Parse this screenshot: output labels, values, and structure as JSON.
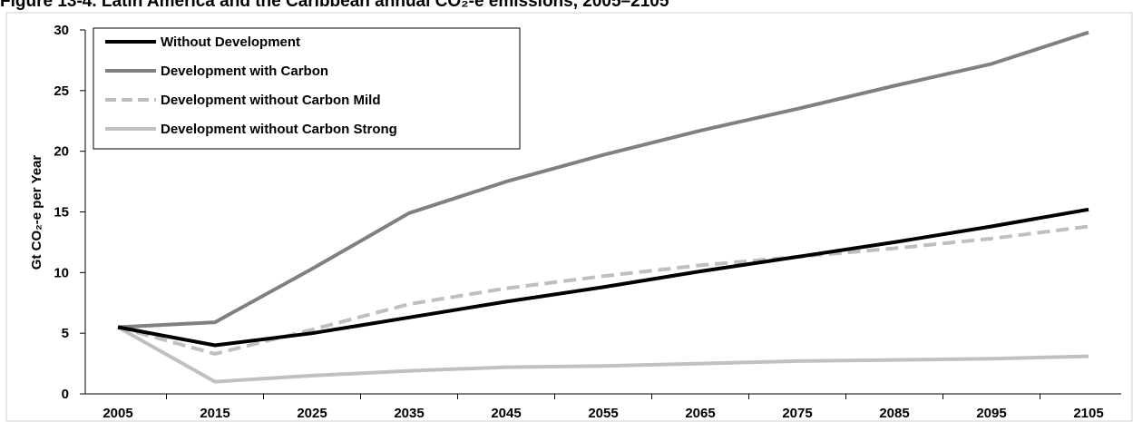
{
  "chart_data": {
    "type": "line",
    "title": "Figure 13-4. Latin America and the Caribbean annual CO₂-e emissions, 2005–2105",
    "ylabel": "Gt CO₂-e per Year",
    "xlabel": "",
    "x": [
      "2005",
      "2015",
      "2025",
      "2035",
      "2045",
      "2055",
      "2065",
      "2075",
      "2085",
      "2095",
      "2105"
    ],
    "yticks": [
      "0",
      "5",
      "10",
      "15",
      "20",
      "25",
      "30"
    ],
    "ylim": [
      0,
      30
    ],
    "grid": false,
    "legend_position": "top-left",
    "series": [
      {
        "name": "Without Development",
        "color": "#000000",
        "dash": "solid",
        "values": [
          5.5,
          4.0,
          5.0,
          6.3,
          7.6,
          8.8,
          10.1,
          11.3,
          12.5,
          13.8,
          15.2
        ]
      },
      {
        "name": "Development with Carbon",
        "color": "#808080",
        "dash": "solid",
        "values": [
          5.5,
          5.9,
          10.3,
          14.9,
          17.5,
          19.7,
          21.7,
          23.5,
          25.4,
          27.2,
          29.8
        ]
      },
      {
        "name": "Development without Carbon Mild",
        "color": "#bfbfbf",
        "dash": "dashed",
        "values": [
          5.5,
          3.3,
          5.3,
          7.4,
          8.7,
          9.7,
          10.6,
          11.3,
          12.0,
          12.8,
          13.8
        ]
      },
      {
        "name": "Development without Carbon Strong",
        "color": "#c0c0c0",
        "dash": "solid",
        "values": [
          5.5,
          1.0,
          1.5,
          1.9,
          2.2,
          2.3,
          2.5,
          2.7,
          2.8,
          2.9,
          3.1
        ]
      }
    ]
  }
}
